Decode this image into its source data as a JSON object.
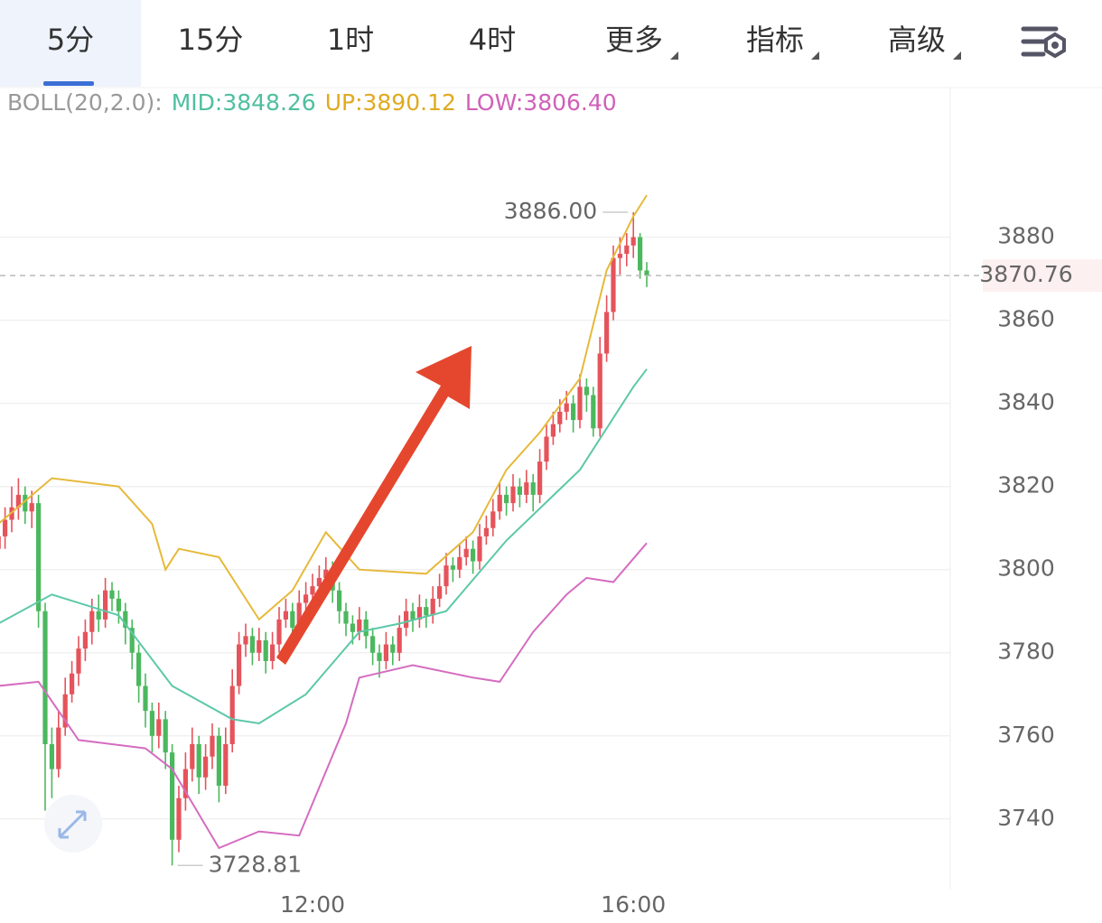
{
  "tabs": [
    "5分",
    "15分",
    "1时",
    "4时",
    "更多",
    "指标",
    "高级"
  ],
  "indicator": {
    "name": "BOLL(20,2.0):",
    "mid": "MID:3848.26",
    "up": "UP:3890.12",
    "low": "LOW:3806.40"
  },
  "chart_data": {
    "type": "candlestick",
    "categories": [
      null,
      null,
      null,
      null,
      null,
      null,
      null,
      null,
      null,
      null,
      null,
      null,
      null,
      null,
      null,
      null,
      null,
      null,
      null,
      null,
      null,
      null,
      null,
      null,
      null,
      null,
      null,
      null,
      null,
      null,
      null,
      null,
      null,
      null,
      null,
      null,
      null,
      null,
      null,
      null,
      null,
      null,
      null,
      null,
      null,
      null,
      null,
      "12:00",
      null,
      null,
      null,
      null,
      null,
      null,
      null,
      null,
      null,
      null,
      null,
      null,
      null,
      null,
      null,
      null,
      null,
      null,
      null,
      null,
      null,
      null,
      null,
      null,
      null,
      null,
      null,
      null,
      null,
      null,
      null,
      null,
      null,
      null,
      null,
      null,
      null,
      null,
      null,
      null,
      null,
      null,
      null,
      null,
      null,
      null,
      null,
      "16:00",
      null,
      null
    ],
    "candles": [
      [
        3805,
        3812,
        3800,
        3808
      ],
      [
        3808,
        3815,
        3805,
        3812
      ],
      [
        3812,
        3820,
        3809,
        3815
      ],
      [
        3815,
        3822,
        3812,
        3818
      ],
      [
        3818,
        3820,
        3811,
        3814
      ],
      [
        3814,
        3819,
        3810,
        3816
      ],
      [
        3816,
        3818,
        3786,
        3790
      ],
      [
        3790,
        3792,
        3742,
        3758
      ],
      [
        3758,
        3762,
        3745,
        3752
      ],
      [
        3752,
        3766,
        3750,
        3762
      ],
      [
        3762,
        3774,
        3760,
        3770
      ],
      [
        3770,
        3778,
        3768,
        3775
      ],
      [
        3775,
        3784,
        3772,
        3781
      ],
      [
        3781,
        3788,
        3778,
        3785
      ],
      [
        3785,
        3793,
        3782,
        3790
      ],
      [
        3790,
        3794,
        3785,
        3788
      ],
      [
        3788,
        3798,
        3786,
        3795
      ],
      [
        3795,
        3797,
        3790,
        3793
      ],
      [
        3793,
        3795,
        3787,
        3790
      ],
      [
        3790,
        3792,
        3782,
        3786
      ],
      [
        3786,
        3788,
        3776,
        3780
      ],
      [
        3780,
        3782,
        3768,
        3772
      ],
      [
        3772,
        3775,
        3762,
        3766
      ],
      [
        3766,
        3768,
        3756,
        3760
      ],
      [
        3760,
        3768,
        3757,
        3764
      ],
      [
        3764,
        3766,
        3752,
        3756
      ],
      [
        3756,
        3758,
        3728.81,
        3735
      ],
      [
        3735,
        3748,
        3732,
        3745
      ],
      [
        3745,
        3756,
        3742,
        3752
      ],
      [
        3752,
        3762,
        3749,
        3758
      ],
      [
        3758,
        3760,
        3746,
        3750
      ],
      [
        3750,
        3758,
        3747,
        3755
      ],
      [
        3755,
        3763,
        3752,
        3760
      ],
      [
        3760,
        3762,
        3744,
        3748
      ],
      [
        3748,
        3762,
        3746,
        3758
      ],
      [
        3758,
        3776,
        3756,
        3772
      ],
      [
        3772,
        3785,
        3770,
        3782
      ],
      [
        3782,
        3787,
        3779,
        3784
      ],
      [
        3784,
        3786,
        3777,
        3780
      ],
      [
        3780,
        3786,
        3778,
        3783
      ],
      [
        3783,
        3785,
        3775,
        3778
      ],
      [
        3778,
        3785,
        3776,
        3782
      ],
      [
        3782,
        3791,
        3780,
        3788
      ],
      [
        3788,
        3793,
        3786,
        3790
      ],
      [
        3790,
        3792,
        3783,
        3786
      ],
      [
        3786,
        3795,
        3784,
        3792
      ],
      [
        3792,
        3797,
        3790,
        3794
      ],
      [
        3794,
        3799,
        3792,
        3796
      ],
      [
        3796,
        3801,
        3794,
        3798
      ],
      [
        3798,
        3803,
        3796,
        3800
      ],
      [
        3800,
        3802,
        3792,
        3795
      ],
      [
        3795,
        3797,
        3787,
        3790
      ],
      [
        3790,
        3792,
        3784,
        3787
      ],
      [
        3787,
        3789,
        3782,
        3785
      ],
      [
        3785,
        3791,
        3783,
        3788
      ],
      [
        3788,
        3790,
        3781,
        3784
      ],
      [
        3784,
        3786,
        3777,
        3780
      ],
      [
        3780,
        3782,
        3774,
        3778
      ],
      [
        3778,
        3785,
        3776,
        3782
      ],
      [
        3782,
        3784,
        3777,
        3780
      ],
      [
        3780,
        3789,
        3778,
        3786
      ],
      [
        3786,
        3793,
        3784,
        3790
      ],
      [
        3790,
        3792,
        3785,
        3788
      ],
      [
        3788,
        3794,
        3786,
        3791
      ],
      [
        3791,
        3793,
        3786,
        3789
      ],
      [
        3789,
        3796,
        3787,
        3793
      ],
      [
        3793,
        3799,
        3791,
        3796
      ],
      [
        3796,
        3804,
        3794,
        3801
      ],
      [
        3801,
        3803,
        3797,
        3800
      ],
      [
        3800,
        3806,
        3798,
        3803
      ],
      [
        3803,
        3808,
        3801,
        3805
      ],
      [
        3805,
        3807,
        3799,
        3802
      ],
      [
        3802,
        3811,
        3800,
        3808
      ],
      [
        3808,
        3813,
        3806,
        3810
      ],
      [
        3810,
        3817,
        3808,
        3814
      ],
      [
        3814,
        3821,
        3812,
        3818
      ],
      [
        3818,
        3820,
        3813,
        3816
      ],
      [
        3816,
        3823,
        3814,
        3820
      ],
      [
        3820,
        3822,
        3815,
        3818
      ],
      [
        3818,
        3824,
        3816,
        3821
      ],
      [
        3821,
        3823,
        3814,
        3818
      ],
      [
        3818,
        3829,
        3816,
        3826
      ],
      [
        3826,
        3835,
        3824,
        3832
      ],
      [
        3832,
        3838,
        3830,
        3835
      ],
      [
        3835,
        3841,
        3833,
        3838
      ],
      [
        3838,
        3843,
        3836,
        3840
      ],
      [
        3840,
        3842,
        3833,
        3836
      ],
      [
        3836,
        3847,
        3834,
        3844
      ],
      [
        3844,
        3846,
        3838,
        3842
      ],
      [
        3842,
        3844,
        3832,
        3834
      ],
      [
        3834,
        3856,
        3832,
        3852
      ],
      [
        3852,
        3866,
        3850,
        3862
      ],
      [
        3862,
        3878,
        3860,
        3875
      ],
      [
        3875,
        3880,
        3871,
        3876
      ],
      [
        3876,
        3881,
        3873,
        3878
      ],
      [
        3878,
        3886.0,
        3875,
        3880
      ],
      [
        3880,
        3881,
        3870,
        3872
      ],
      [
        3872,
        3874,
        3868,
        3870.76
      ]
    ],
    "up_color": "#e5535b",
    "down_color": "#4bb85e",
    "bands": [
      {
        "color": "#5cc8a8",
        "x": [
          0,
          8,
          18,
          26,
          35,
          39,
          46,
          54,
          60,
          67,
          76,
          87,
          95,
          97
        ],
        "values": [
          3787,
          3794,
          3789,
          3772,
          3764,
          3763,
          3770,
          3785,
          3787,
          3790,
          3807,
          3824,
          3844,
          3848.26
        ]
      },
      {
        "color": "#e6b93a",
        "x": [
          0,
          8,
          18,
          23,
          25,
          27,
          33,
          39,
          44,
          49,
          54,
          64,
          71,
          76,
          81,
          87,
          91,
          95,
          97
        ],
        "values": [
          3811,
          3822,
          3820,
          3811,
          3800,
          3805,
          3803,
          3788,
          3795,
          3809,
          3800,
          3799,
          3809,
          3824,
          3833,
          3846,
          3872,
          3885,
          3890.12
        ]
      },
      {
        "color": "#d56cc0",
        "x": [
          0,
          6,
          12,
          22,
          26,
          33,
          39,
          45,
          52,
          54,
          62,
          71,
          75,
          80,
          85,
          88,
          92,
          97
        ],
        "values": [
          3772,
          3773,
          3759,
          3757,
          3752,
          3733,
          3737,
          3736,
          3763,
          3774,
          3777,
          3774,
          3773,
          3785,
          3794,
          3798,
          3797,
          3806.4
        ]
      }
    ],
    "high_label": "3886.00",
    "low_label": "3728.81",
    "last_price_label": "3870.76",
    "ylim": [
      3723,
      3916
    ],
    "yticks": [
      3740,
      3760,
      3780,
      3800,
      3820,
      3840,
      3860,
      3880
    ],
    "grid": true
  }
}
